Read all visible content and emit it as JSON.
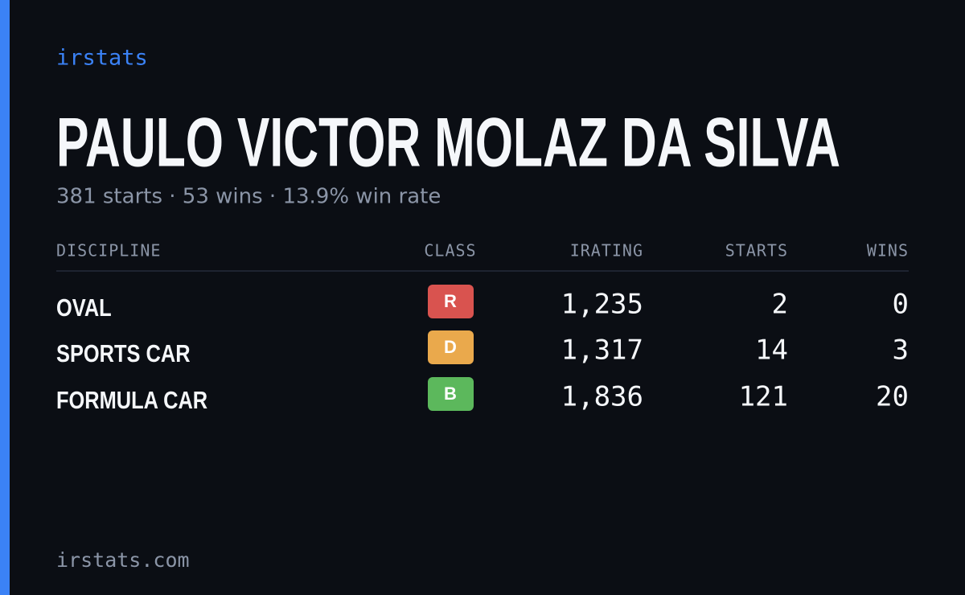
{
  "brand": "irstats",
  "driver": {
    "name": "PAULO VICTOR MOLAZ DA SILVA",
    "summary": "381 starts · 53 wins · 13.9% win rate"
  },
  "table": {
    "headers": [
      "DISCIPLINE",
      "CLASS",
      "IRATING",
      "STARTS",
      "WINS"
    ],
    "rows": [
      {
        "discipline": "OVAL",
        "class": "R",
        "class_color": "#d9534f",
        "irating": "1,235",
        "starts": "2",
        "wins": "0"
      },
      {
        "discipline": "SPORTS CAR",
        "class": "D",
        "class_color": "#eaa94c",
        "irating": "1,317",
        "starts": "14",
        "wins": "3"
      },
      {
        "discipline": "FORMULA CAR",
        "class": "B",
        "class_color": "#5cb85c",
        "irating": "1,836",
        "starts": "121",
        "wins": "20"
      }
    ]
  },
  "footer": "irstats.com"
}
